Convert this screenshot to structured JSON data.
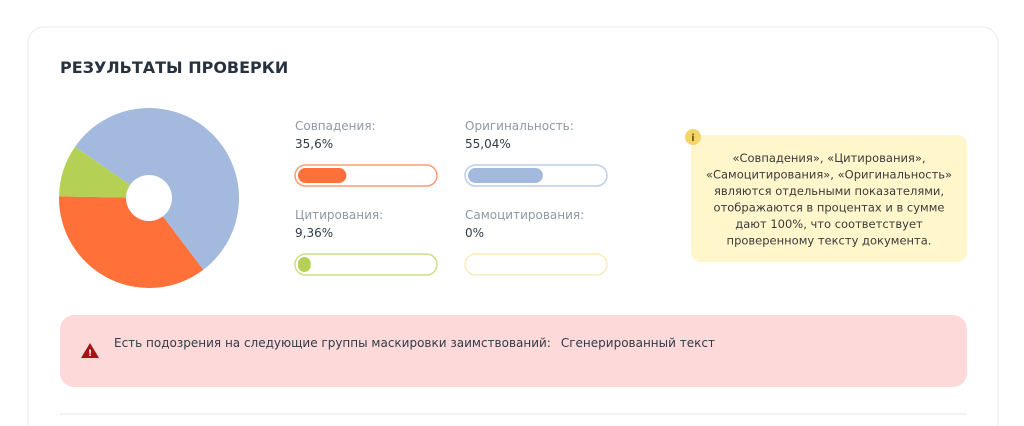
{
  "header": {
    "title": "РЕЗУЛЬТАТЫ ПРОВЕРКИ"
  },
  "chart_data": {
    "type": "pie",
    "categories": [
      "Совпадения:",
      "Оригинальность:",
      "Цитирования:",
      "Самоцитирования:"
    ],
    "values": [
      35.6,
      55.04,
      9.36,
      0
    ],
    "value_labels": [
      "35,6%",
      "55,04%",
      "9,36%",
      "0%"
    ],
    "colors": [
      "#ff7139",
      "#a3b9dd",
      "#b5d155",
      "#fde3a0"
    ]
  },
  "note": {
    "lines": [
      "«Совпадения», «Цитирования»,",
      "«Самоцитирования», «Оригинальность»",
      "являются отдельными показателями,",
      "отображаются в процентах и в сумме",
      "дают 100%, что соответствует",
      "проверенному тексту документа."
    ]
  },
  "warning": {
    "text": "Есть подозрения на следующие группы маскировки заимствований:",
    "value": "Сгенерированный текст"
  }
}
